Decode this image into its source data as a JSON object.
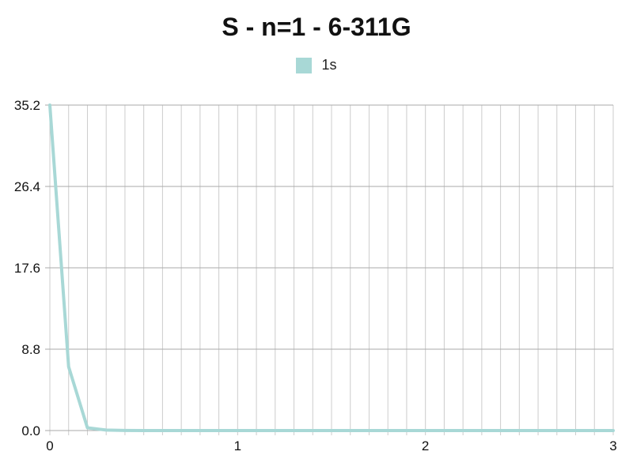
{
  "chart_data": {
    "type": "line",
    "title": "S - n=1 - 6-311G",
    "xlabel": "",
    "ylabel": "",
    "xlim": [
      0,
      3
    ],
    "ylim": [
      0,
      35.2
    ],
    "x_ticks": [
      "0",
      "1",
      "2",
      "3"
    ],
    "y_ticks": [
      "0.0",
      "8.8",
      "17.6",
      "26.4",
      "35.2"
    ],
    "grid": true,
    "legend_position": "top-center",
    "series": [
      {
        "name": "1s",
        "color": "#a8d8d6",
        "x": [
          0,
          0.1,
          0.2,
          0.3,
          0.4,
          0.5,
          0.6,
          0.7,
          0.8,
          0.9,
          1.0,
          1.1,
          1.2,
          1.3,
          1.4,
          1.5,
          1.6,
          1.7,
          1.8,
          1.9,
          2.0,
          2.1,
          2.2,
          2.3,
          2.4,
          2.5,
          2.6,
          2.7,
          2.8,
          2.9,
          3.0
        ],
        "y": [
          35.2,
          6.9,
          0.3,
          0.05,
          0.01,
          0,
          0,
          0,
          0,
          0,
          0,
          0,
          0,
          0,
          0,
          0,
          0,
          0,
          0,
          0,
          0,
          0,
          0,
          0,
          0,
          0,
          0,
          0,
          0,
          0,
          0
        ]
      }
    ]
  }
}
